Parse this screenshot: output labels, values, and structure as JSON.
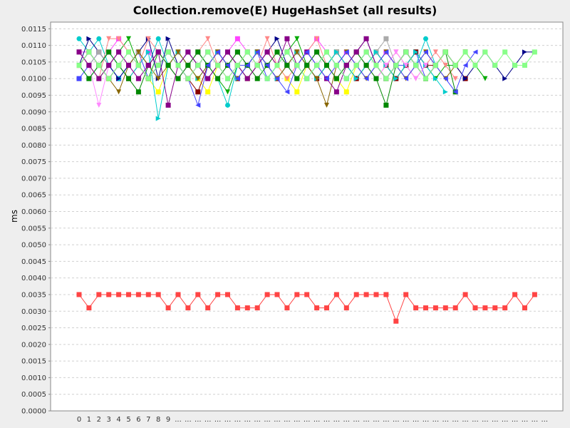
{
  "chart_data": {
    "type": "line",
    "title": "Collection.remove(E) HugeHashSet (all results)",
    "xlabel": "",
    "ylabel": "ms",
    "ylim": [
      0,
      0.0117
    ],
    "yticks": [
      "0.0000",
      "0.0005",
      "0.0010",
      "0.0015",
      "0.0020",
      "0.0025",
      "0.0030",
      "0.0035",
      "0.0040",
      "0.0045",
      "0.0050",
      "0.0055",
      "0.0060",
      "0.0065",
      "0.0070",
      "0.0075",
      "0.0080",
      "0.0085",
      "0.0090",
      "0.0095",
      "0.0100",
      "0.0105",
      "0.0110",
      "0.0115"
    ],
    "xticks": [
      "0",
      "1",
      "2",
      "3",
      "4",
      "5",
      "6",
      "7",
      "8",
      "9",
      "...",
      "...",
      "...",
      "...",
      "...",
      "...",
      "...",
      "...",
      "...",
      "...",
      "...",
      "...",
      "...",
      "...",
      "...",
      "...",
      "...",
      "...",
      "...",
      "...",
      "...",
      "...",
      "...",
      "...",
      "...",
      "...",
      "...",
      "...",
      "...",
      "...",
      "...",
      "...",
      "...",
      "...",
      "...",
      "...",
      "...",
      "..."
    ],
    "grid": true,
    "legend": "none",
    "series": [
      {
        "color": "#ff4444",
        "marker": "square",
        "values": [
          0.0035,
          0.0031,
          0.0035,
          0.0035,
          0.0035,
          0.0035,
          0.0035,
          0.0035,
          0.0035,
          0.0031,
          0.0035,
          0.0031,
          0.0035,
          0.0031,
          0.0035,
          0.0035,
          0.0031,
          0.0031,
          0.0031,
          0.0035,
          0.0035,
          0.0031,
          0.0035,
          0.0035,
          0.0031,
          0.0031,
          0.0035,
          0.0031,
          0.0035,
          0.0035,
          0.0035,
          0.0035,
          0.0027,
          0.0035,
          0.0031,
          0.0031,
          0.0031,
          0.0031,
          0.0031,
          0.0035,
          0.0031,
          0.0031,
          0.0031,
          0.0031,
          0.0035,
          0.0031,
          0.0035
        ]
      },
      {
        "color": "#4444ff",
        "marker": "square",
        "values": [
          0.01,
          0.0104,
          0.0108,
          0.0104,
          0.01,
          0.0104,
          0.0108,
          0.01,
          0.0104,
          0.0108,
          0.0104,
          0.01,
          0.0104,
          0.0108,
          0.0104,
          0.01,
          0.0104,
          0.0104,
          0.0108,
          0.01,
          0.0104,
          0.0108,
          0.0104,
          0.01,
          0.0104,
          0.0108,
          0.0104,
          0.01,
          0.0104,
          0.0108,
          0.0104,
          0.01,
          0.0104,
          0.0104,
          0.0108,
          0.01,
          0.0104
        ]
      },
      {
        "color": "#00aa00",
        "marker": "triangle-down",
        "values": [
          0.0108,
          0.0104,
          0.01,
          0.0104,
          0.0108,
          0.0112,
          0.0104,
          0.01,
          0.0108,
          0.0104,
          0.01,
          0.0104,
          0.0108,
          0.0104,
          0.01,
          0.0096,
          0.0104,
          0.0108,
          0.0104,
          0.01,
          0.0104,
          0.0108,
          0.0112,
          0.0104,
          0.01,
          0.0104,
          0.0108,
          0.0104,
          0.01,
          0.0104,
          0.0108,
          0.0104,
          0.01,
          0.0104,
          0.0108,
          0.0104,
          0.01,
          0.0104,
          0.0104,
          0.0108,
          0.0104,
          0.01
        ]
      },
      {
        "color": "#ffff00",
        "marker": "square",
        "values": [
          0.0104,
          0.0108,
          0.0104,
          0.01,
          0.0104,
          0.0108,
          0.0104,
          0.01,
          0.0096,
          0.0104,
          0.0108,
          0.0104,
          0.01,
          0.0096,
          0.0104,
          0.0108,
          0.0104,
          0.01,
          0.0104,
          0.0108,
          0.0104,
          0.01,
          0.0096,
          0.0104,
          0.0108,
          0.0104,
          0.01,
          0.0096,
          0.0104,
          0.0108,
          0.0104,
          0.01,
          0.0104,
          0.0108,
          0.0104,
          0.01,
          0.0104,
          0.0108,
          0.0104
        ]
      },
      {
        "color": "#ff44ff",
        "marker": "square",
        "values": [
          0.0108,
          0.0108,
          0.0104,
          0.0108,
          0.0112,
          0.0108,
          0.0104,
          0.0108,
          0.0104,
          0.0108,
          0.0104,
          0.01,
          0.0104,
          0.0108,
          0.0104,
          0.0108,
          0.0112,
          0.0108,
          0.0104,
          0.0108,
          0.0104,
          0.0108,
          0.0104,
          0.0108,
          0.0112,
          0.0108,
          0.0104,
          0.0108,
          0.0104,
          0.0108,
          0.0104,
          0.0108,
          0.0104,
          0.0108,
          0.0104
        ]
      },
      {
        "color": "#00cccc",
        "marker": "circle",
        "values": [
          0.0112,
          0.0108,
          0.0112,
          0.0104,
          0.01,
          0.0104,
          0.0108,
          0.0104,
          0.0112,
          0.0104,
          0.01,
          0.0104,
          0.0108,
          0.0104,
          0.01,
          0.0092,
          0.0104,
          0.0108,
          0.0104,
          0.01,
          0.0104,
          0.0108,
          0.0104,
          0.01,
          0.0104,
          0.0108,
          0.0104,
          0.01,
          0.0104,
          0.0108,
          0.0104,
          0.01,
          0.0104,
          0.0108,
          0.0104,
          0.0112,
          0.0104
        ]
      },
      {
        "color": "#880000",
        "marker": "square",
        "values": [
          0.0104,
          0.0108,
          0.0104,
          0.01,
          0.0104,
          0.01,
          0.0104,
          0.01,
          0.0104,
          0.0108,
          0.0104,
          0.01,
          0.0096,
          0.0104,
          0.0108,
          0.0104,
          0.01,
          0.0104,
          0.0108,
          0.0104,
          0.01,
          0.0104,
          0.0108,
          0.0104,
          0.01,
          0.0104,
          0.0108,
          0.0104,
          0.01,
          0.0104,
          0.0108,
          0.0104,
          0.01,
          0.0104,
          0.0108,
          0.0104,
          0.0104,
          0.0108,
          0.0104,
          0.01
        ]
      },
      {
        "color": "#000088",
        "marker": "triangle-right",
        "values": [
          0.0104,
          0.0112,
          0.0108,
          0.0104,
          0.01,
          0.0104,
          0.0108,
          0.0112,
          0.01,
          0.0112,
          0.0104,
          0.0108,
          0.0104,
          0.01,
          0.0104,
          0.0108,
          0.0104,
          0.01,
          0.0104,
          0.0108,
          0.0112,
          0.0104,
          0.01,
          0.0104,
          0.0108,
          0.0104,
          0.01,
          0.0104,
          0.0108,
          0.0112,
          0.0104,
          0.01,
          0.0104,
          0.0108,
          0.0104,
          0.01,
          0.0104,
          0.0108,
          0.0104,
          0.01,
          0.0104,
          0.0108,
          0.0104,
          0.01,
          0.0104,
          0.0108,
          0.0108
        ]
      },
      {
        "color": "#ff8888",
        "marker": "triangle-down",
        "values": [
          0.0108,
          0.0104,
          0.01,
          0.0112,
          0.0112,
          0.0108,
          0.0104,
          0.0112,
          0.0108,
          0.0104,
          0.01,
          0.0104,
          0.0108,
          0.0112,
          0.0104,
          0.01,
          0.0104,
          0.0108,
          0.0104,
          0.0112,
          0.0104,
          0.01,
          0.0104,
          0.0108,
          0.0112,
          0.0104,
          0.01,
          0.0104,
          0.0108,
          0.0104,
          0.01,
          0.0104,
          0.0108,
          0.0104,
          0.01,
          0.0104,
          0.0108,
          0.0104,
          0.01
        ]
      },
      {
        "color": "#aaaaaa",
        "marker": "square",
        "values": [
          0.0108,
          0.0104,
          0.0108,
          0.0104,
          0.0108,
          0.0104,
          0.0108,
          0.0104,
          0.0108,
          0.0104,
          0.0108,
          0.0104,
          0.0108,
          0.0104,
          0.0108,
          0.0104,
          0.0108,
          0.0104,
          0.0108,
          0.0104,
          0.0108,
          0.0104,
          0.0108,
          0.0104,
          0.0108,
          0.0104,
          0.0108,
          0.0104,
          0.0108,
          0.0104,
          0.0108,
          0.0112,
          0.0104,
          0.0108,
          0.0104
        ]
      },
      {
        "color": "#00cccc",
        "marker": "triangle-right",
        "values": [
          0.0104,
          0.01,
          0.0104,
          0.0108,
          0.0104,
          0.01,
          0.0104,
          0.0108,
          0.0088,
          0.0104,
          0.0108,
          0.0104,
          0.01,
          0.0104,
          0.0108,
          0.0104,
          0.01,
          0.0104,
          0.0108,
          0.0104,
          0.01,
          0.0104,
          0.0108,
          0.0104,
          0.01,
          0.0104,
          0.0108,
          0.0104,
          0.01,
          0.0104,
          0.0108,
          0.0104,
          0.01,
          0.0104,
          0.0108,
          0.0104,
          0.01,
          0.0096
        ]
      },
      {
        "color": "#ff88ff",
        "marker": "triangle-down",
        "values": [
          0.0108,
          0.0104,
          0.0092,
          0.0104,
          0.0108,
          0.0104,
          0.01,
          0.0104,
          0.0108,
          0.0104,
          0.01,
          0.0104,
          0.0108,
          0.0104,
          0.01,
          0.0104,
          0.0108,
          0.0104,
          0.01,
          0.0104,
          0.0108,
          0.0104,
          0.01,
          0.0104,
          0.0108,
          0.0104,
          0.01,
          0.0104,
          0.0108,
          0.0104,
          0.01,
          0.0104,
          0.0108,
          0.0104,
          0.01,
          0.0104
        ]
      },
      {
        "color": "#886600",
        "marker": "triangle-down",
        "values": [
          0.0104,
          0.0108,
          0.0104,
          0.01,
          0.0096,
          0.0104,
          0.0108,
          0.0104,
          0.01,
          0.0104,
          0.0108,
          0.0104,
          0.01,
          0.0104,
          0.0108,
          0.0104,
          0.01,
          0.0104,
          0.0108,
          0.0104,
          0.01,
          0.0104,
          0.0108,
          0.0104,
          0.01,
          0.0092,
          0.0104,
          0.0108,
          0.0104,
          0.01,
          0.0104,
          0.0108,
          0.0104,
          0.01,
          0.0104,
          0.0108,
          0.0104,
          0.01,
          0.0104,
          0.0108,
          0.0104
        ]
      },
      {
        "color": "#008800",
        "marker": "square",
        "values": [
          0.0104,
          0.01,
          0.0104,
          0.0108,
          0.0104,
          0.01,
          0.0096,
          0.0104,
          0.0108,
          0.0104,
          0.01,
          0.0104,
          0.0108,
          0.0104,
          0.01,
          0.0104,
          0.0108,
          0.0104,
          0.01,
          0.0104,
          0.0108,
          0.0104,
          0.01,
          0.0104,
          0.0108,
          0.0104,
          0.01,
          0.0104,
          0.0108,
          0.0104,
          0.01,
          0.0092,
          0.0104,
          0.0108,
          0.0104,
          0.01,
          0.0104,
          0.0108,
          0.0096
        ]
      },
      {
        "color": "#880088",
        "marker": "square",
        "values": [
          0.0108,
          0.0104,
          0.01,
          0.0104,
          0.0108,
          0.0104,
          0.01,
          0.0104,
          0.0108,
          0.0092,
          0.0104,
          0.0108,
          0.0104,
          0.01,
          0.0104,
          0.0108,
          0.0104,
          0.01,
          0.0104,
          0.0108,
          0.0104,
          0.0112,
          0.0104,
          0.0108,
          0.0104,
          0.01,
          0.0096,
          0.0104,
          0.0108,
          0.0112,
          0.0104,
          0.01,
          0.0104,
          0.0108,
          0.0104,
          0.01,
          0.0104
        ]
      },
      {
        "color": "#4444ff",
        "marker": "triangle-left",
        "values": [
          0.0104,
          0.0108,
          0.0104,
          0.01,
          0.0104,
          0.0108,
          0.0104,
          0.01,
          0.0104,
          0.0108,
          0.0104,
          0.01,
          0.0092,
          0.0104,
          0.0108,
          0.0104,
          0.01,
          0.0104,
          0.0108,
          0.0104,
          0.01,
          0.0096,
          0.0104,
          0.0108,
          0.0104,
          0.01,
          0.0104,
          0.0108,
          0.0104,
          0.01,
          0.0104,
          0.0108,
          0.0104,
          0.01,
          0.0104,
          0.0108,
          0.0104,
          0.01,
          0.0096,
          0.0104,
          0.0108
        ]
      },
      {
        "color": "#88ff88",
        "marker": "square",
        "values": [
          0.0104,
          0.0108,
          0.0104,
          0.01,
          0.0104,
          0.0108,
          0.0104,
          0.01,
          0.0104,
          0.0108,
          0.0104,
          0.01,
          0.0104,
          0.0108,
          0.0104,
          0.01,
          0.0104,
          0.0108,
          0.0104,
          0.01,
          0.0104,
          0.0108,
          0.0104,
          0.01,
          0.0104,
          0.0108,
          0.0104,
          0.01,
          0.0104,
          0.0108,
          0.0104,
          0.01,
          0.0104,
          0.0108,
          0.0104,
          0.01,
          0.0104,
          0.0108,
          0.0104,
          0.0108,
          0.0104,
          0.0108,
          0.0104,
          0.0108,
          0.0104,
          0.0104,
          0.0108
        ]
      }
    ]
  }
}
